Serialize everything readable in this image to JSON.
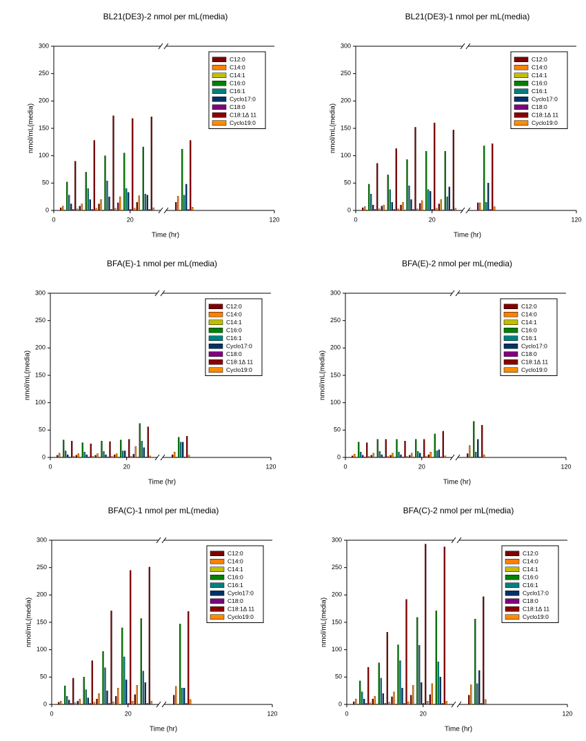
{
  "chart_data": [
    {
      "type": "bar",
      "title": "BL21(DE3)-2 nmol per mL(media)",
      "x_label": "Time (hr)",
      "y_label": "nmol/mL(media)",
      "x": [
        4,
        9,
        14,
        19,
        24,
        60
      ],
      "xlim": [
        0,
        120
      ],
      "xticks": [
        0,
        20,
        120
      ],
      "xbreak": [
        28,
        48
      ],
      "ylim": [
        0,
        300
      ],
      "yticks": [
        0,
        50,
        100,
        150,
        200,
        250,
        300
      ],
      "grid": false,
      "legend": "upper right",
      "series": [
        {
          "name": "C12:0",
          "color": "#800000",
          "values": [
            5,
            8,
            12,
            14,
            15,
            15
          ]
        },
        {
          "name": "C14:0",
          "color": "#ff8000",
          "values": [
            8,
            12,
            20,
            25,
            27,
            26
          ]
        },
        {
          "name": "C14:1",
          "color": "#c0c000",
          "values": [
            1,
            1,
            1,
            1,
            1,
            1
          ]
        },
        {
          "name": "C16:0",
          "color": "#008000",
          "values": [
            52,
            70,
            100,
            105,
            116,
            112
          ]
        },
        {
          "name": "C16:1",
          "color": "#008080",
          "values": [
            28,
            40,
            54,
            40,
            30,
            28
          ]
        },
        {
          "name": "Cyclo17:0",
          "color": "#003366",
          "values": [
            12,
            20,
            25,
            33,
            28,
            48
          ]
        },
        {
          "name": "C18:0",
          "color": "#800080",
          "values": [
            2,
            2,
            2,
            2,
            2,
            2
          ]
        },
        {
          "name": "C18:1Δ 11",
          "color": "#8b0000",
          "values": [
            90,
            128,
            173,
            168,
            171,
            128
          ]
        },
        {
          "name": "Cyclo19:0",
          "color": "#ff8c00",
          "values": [
            3,
            4,
            4,
            4,
            5,
            6
          ]
        }
      ]
    },
    {
      "type": "bar",
      "title": "BL21(DE3)-1 nmol per mL(media)",
      "x_label": "Time (hr)",
      "y_label": "nmol/mL(media)",
      "x": [
        4,
        9,
        14,
        19,
        24,
        60
      ],
      "xlim": [
        0,
        120
      ],
      "xticks": [
        0,
        20,
        120
      ],
      "xbreak": [
        28,
        48
      ],
      "ylim": [
        0,
        300
      ],
      "yticks": [
        0,
        50,
        100,
        150,
        200,
        250,
        300
      ],
      "grid": false,
      "legend": "upper right",
      "series": [
        {
          "name": "C12:0",
          "color": "#800000",
          "values": [
            5,
            8,
            10,
            13,
            12,
            14
          ]
        },
        {
          "name": "C14:0",
          "color": "#ff8000",
          "values": [
            7,
            10,
            15,
            18,
            20,
            14
          ]
        },
        {
          "name": "C14:1",
          "color": "#c0c000",
          "values": [
            1,
            1,
            1,
            1,
            1,
            1
          ]
        },
        {
          "name": "C16:0",
          "color": "#008000",
          "values": [
            48,
            65,
            93,
            108,
            108,
            118
          ]
        },
        {
          "name": "C16:1",
          "color": "#008080",
          "values": [
            30,
            38,
            45,
            38,
            25,
            15
          ]
        },
        {
          "name": "Cyclo17:0",
          "color": "#003366",
          "values": [
            10,
            15,
            20,
            35,
            43,
            50
          ]
        },
        {
          "name": "C18:0",
          "color": "#800080",
          "values": [
            2,
            2,
            2,
            2,
            2,
            2
          ]
        },
        {
          "name": "C18:1Δ 11",
          "color": "#8b0000",
          "values": [
            86,
            113,
            152,
            160,
            147,
            122
          ]
        },
        {
          "name": "Cyclo19:0",
          "color": "#ff8c00",
          "values": [
            3,
            3,
            3,
            4,
            4,
            7
          ]
        }
      ]
    },
    {
      "type": "bar",
      "title": "BFA(E)-1 nmol per mL(media)",
      "x_label": "Time (hr)",
      "y_label": "nmol/mL(media)",
      "x": [
        4,
        9,
        14,
        19,
        24,
        60
      ],
      "xlim": [
        0,
        120
      ],
      "xticks": [
        0,
        20,
        120
      ],
      "xbreak": [
        28,
        48
      ],
      "ylim": [
        0,
        300
      ],
      "yticks": [
        0,
        50,
        100,
        150,
        200,
        250,
        300
      ],
      "grid": false,
      "legend": "upper right",
      "series": [
        {
          "name": "C12:0",
          "color": "#800000",
          "values": [
            4,
            4,
            4,
            5,
            6,
            5
          ]
        },
        {
          "name": "C14:0",
          "color": "#ff8000",
          "values": [
            8,
            7,
            7,
            7,
            20,
            10
          ]
        },
        {
          "name": "C14:1",
          "color": "#c0c000",
          "values": [
            1,
            1,
            1,
            1,
            1,
            1
          ]
        },
        {
          "name": "C16:0",
          "color": "#008000",
          "values": [
            32,
            27,
            30,
            32,
            62,
            37
          ]
        },
        {
          "name": "C16:1",
          "color": "#008080",
          "values": [
            12,
            10,
            11,
            12,
            30,
            28
          ]
        },
        {
          "name": "Cyclo17:0",
          "color": "#003366",
          "values": [
            5,
            5,
            5,
            12,
            18,
            28
          ]
        },
        {
          "name": "C18:0",
          "color": "#800080",
          "values": [
            1,
            1,
            1,
            1,
            1,
            1
          ]
        },
        {
          "name": "C18:1Δ 11",
          "color": "#8b0000",
          "values": [
            30,
            25,
            29,
            33,
            56,
            39
          ]
        },
        {
          "name": "Cyclo19:0",
          "color": "#ff8c00",
          "values": [
            2,
            2,
            2,
            2,
            3,
            4
          ]
        }
      ]
    },
    {
      "type": "bar",
      "title": "BFA(E)-2 nmol per mL(media)",
      "x_label": "Time (hr)",
      "y_label": "nmol/mL(media)",
      "x": [
        4,
        9,
        14,
        19,
        24,
        60
      ],
      "xlim": [
        0,
        120
      ],
      "xticks": [
        0,
        20,
        120
      ],
      "xbreak": [
        28,
        48
      ],
      "ylim": [
        0,
        300
      ],
      "yticks": [
        0,
        50,
        100,
        150,
        200,
        250,
        300
      ],
      "grid": false,
      "legend": "upper right",
      "series": [
        {
          "name": "C12:0",
          "color": "#800000",
          "values": [
            3,
            4,
            4,
            4,
            5,
            7
          ]
        },
        {
          "name": "C14:0",
          "color": "#ff8000",
          "values": [
            6,
            8,
            8,
            8,
            10,
            22
          ]
        },
        {
          "name": "C14:1",
          "color": "#c0c000",
          "values": [
            1,
            1,
            1,
            1,
            1,
            1
          ]
        },
        {
          "name": "C16:0",
          "color": "#008000",
          "values": [
            28,
            33,
            33,
            33,
            43,
            66
          ]
        },
        {
          "name": "C16:1",
          "color": "#008080",
          "values": [
            10,
            11,
            10,
            11,
            12,
            10
          ]
        },
        {
          "name": "Cyclo17:0",
          "color": "#003366",
          "values": [
            4,
            5,
            5,
            8,
            14,
            33
          ]
        },
        {
          "name": "C18:0",
          "color": "#800080",
          "values": [
            1,
            1,
            1,
            1,
            1,
            1
          ]
        },
        {
          "name": "C18:1Δ 11",
          "color": "#8b0000",
          "values": [
            27,
            33,
            30,
            33,
            48,
            59
          ]
        },
        {
          "name": "Cyclo19:0",
          "color": "#ff8c00",
          "values": [
            2,
            2,
            2,
            2,
            3,
            5
          ]
        }
      ]
    },
    {
      "type": "bar",
      "title": "BFA(C)-1 nmol per mL(media)",
      "x_label": "Time (hr)",
      "y_label": "nmol/mL(media)",
      "x": [
        4,
        9,
        14,
        19,
        24,
        60
      ],
      "xlim": [
        0,
        120
      ],
      "xticks": [
        0,
        20,
        120
      ],
      "xbreak": [
        28,
        48
      ],
      "ylim": [
        0,
        300
      ],
      "yticks": [
        0,
        50,
        100,
        150,
        200,
        250,
        300
      ],
      "grid": false,
      "legend": "upper right",
      "series": [
        {
          "name": "C12:0",
          "color": "#800000",
          "values": [
            4,
            6,
            10,
            15,
            18,
            17
          ]
        },
        {
          "name": "C14:0",
          "color": "#ff8000",
          "values": [
            6,
            10,
            20,
            30,
            35,
            33
          ]
        },
        {
          "name": "C14:1",
          "color": "#c0c000",
          "values": [
            1,
            1,
            1,
            1,
            1,
            1
          ]
        },
        {
          "name": "C16:0",
          "color": "#008000",
          "values": [
            34,
            50,
            97,
            140,
            157,
            147
          ]
        },
        {
          "name": "C16:1",
          "color": "#008080",
          "values": [
            15,
            27,
            67,
            87,
            61,
            30
          ]
        },
        {
          "name": "Cyclo17:0",
          "color": "#003366",
          "values": [
            8,
            12,
            25,
            45,
            40,
            30
          ]
        },
        {
          "name": "C18:0",
          "color": "#800080",
          "values": [
            2,
            2,
            2,
            2,
            2,
            2
          ]
        },
        {
          "name": "C18:1Δ 11",
          "color": "#8b0000",
          "values": [
            48,
            80,
            171,
            245,
            251,
            170
          ]
        },
        {
          "name": "Cyclo19:0",
          "color": "#ff8c00",
          "values": [
            3,
            4,
            5,
            6,
            6,
            9
          ]
        }
      ]
    },
    {
      "type": "bar",
      "title": "BFA(C)-2 nmol per mL(media)",
      "x_label": "Time (hr)",
      "y_label": "nmol/mL(media)",
      "x": [
        4,
        9,
        14,
        19,
        24,
        60
      ],
      "xlim": [
        0,
        120
      ],
      "xticks": [
        0,
        20,
        120
      ],
      "xbreak": [
        28,
        48
      ],
      "ylim": [
        0,
        300
      ],
      "yticks": [
        0,
        50,
        100,
        150,
        200,
        250,
        300
      ],
      "grid": false,
      "legend": "upper right",
      "series": [
        {
          "name": "C12:0",
          "color": "#800000",
          "values": [
            5,
            10,
            14,
            17,
            18,
            17
          ]
        },
        {
          "name": "C14:0",
          "color": "#ff8000",
          "values": [
            10,
            15,
            23,
            35,
            38,
            36
          ]
        },
        {
          "name": "C14:1",
          "color": "#c0c000",
          "values": [
            1,
            1,
            1,
            1,
            1,
            1
          ]
        },
        {
          "name": "C16:0",
          "color": "#008000",
          "values": [
            43,
            76,
            109,
            159,
            171,
            156
          ]
        },
        {
          "name": "C16:1",
          "color": "#008080",
          "values": [
            23,
            48,
            80,
            108,
            78,
            38
          ]
        },
        {
          "name": "Cyclo17:0",
          "color": "#003366",
          "values": [
            10,
            20,
            30,
            40,
            50,
            62
          ]
        },
        {
          "name": "C18:0",
          "color": "#800080",
          "values": [
            2,
            2,
            2,
            2,
            2,
            2
          ]
        },
        {
          "name": "C18:1Δ 11",
          "color": "#8b0000",
          "values": [
            68,
            132,
            192,
            293,
            288,
            197
          ]
        },
        {
          "name": "Cyclo19:0",
          "color": "#ff8c00",
          "values": [
            3,
            4,
            5,
            6,
            6,
            9
          ]
        }
      ]
    }
  ]
}
